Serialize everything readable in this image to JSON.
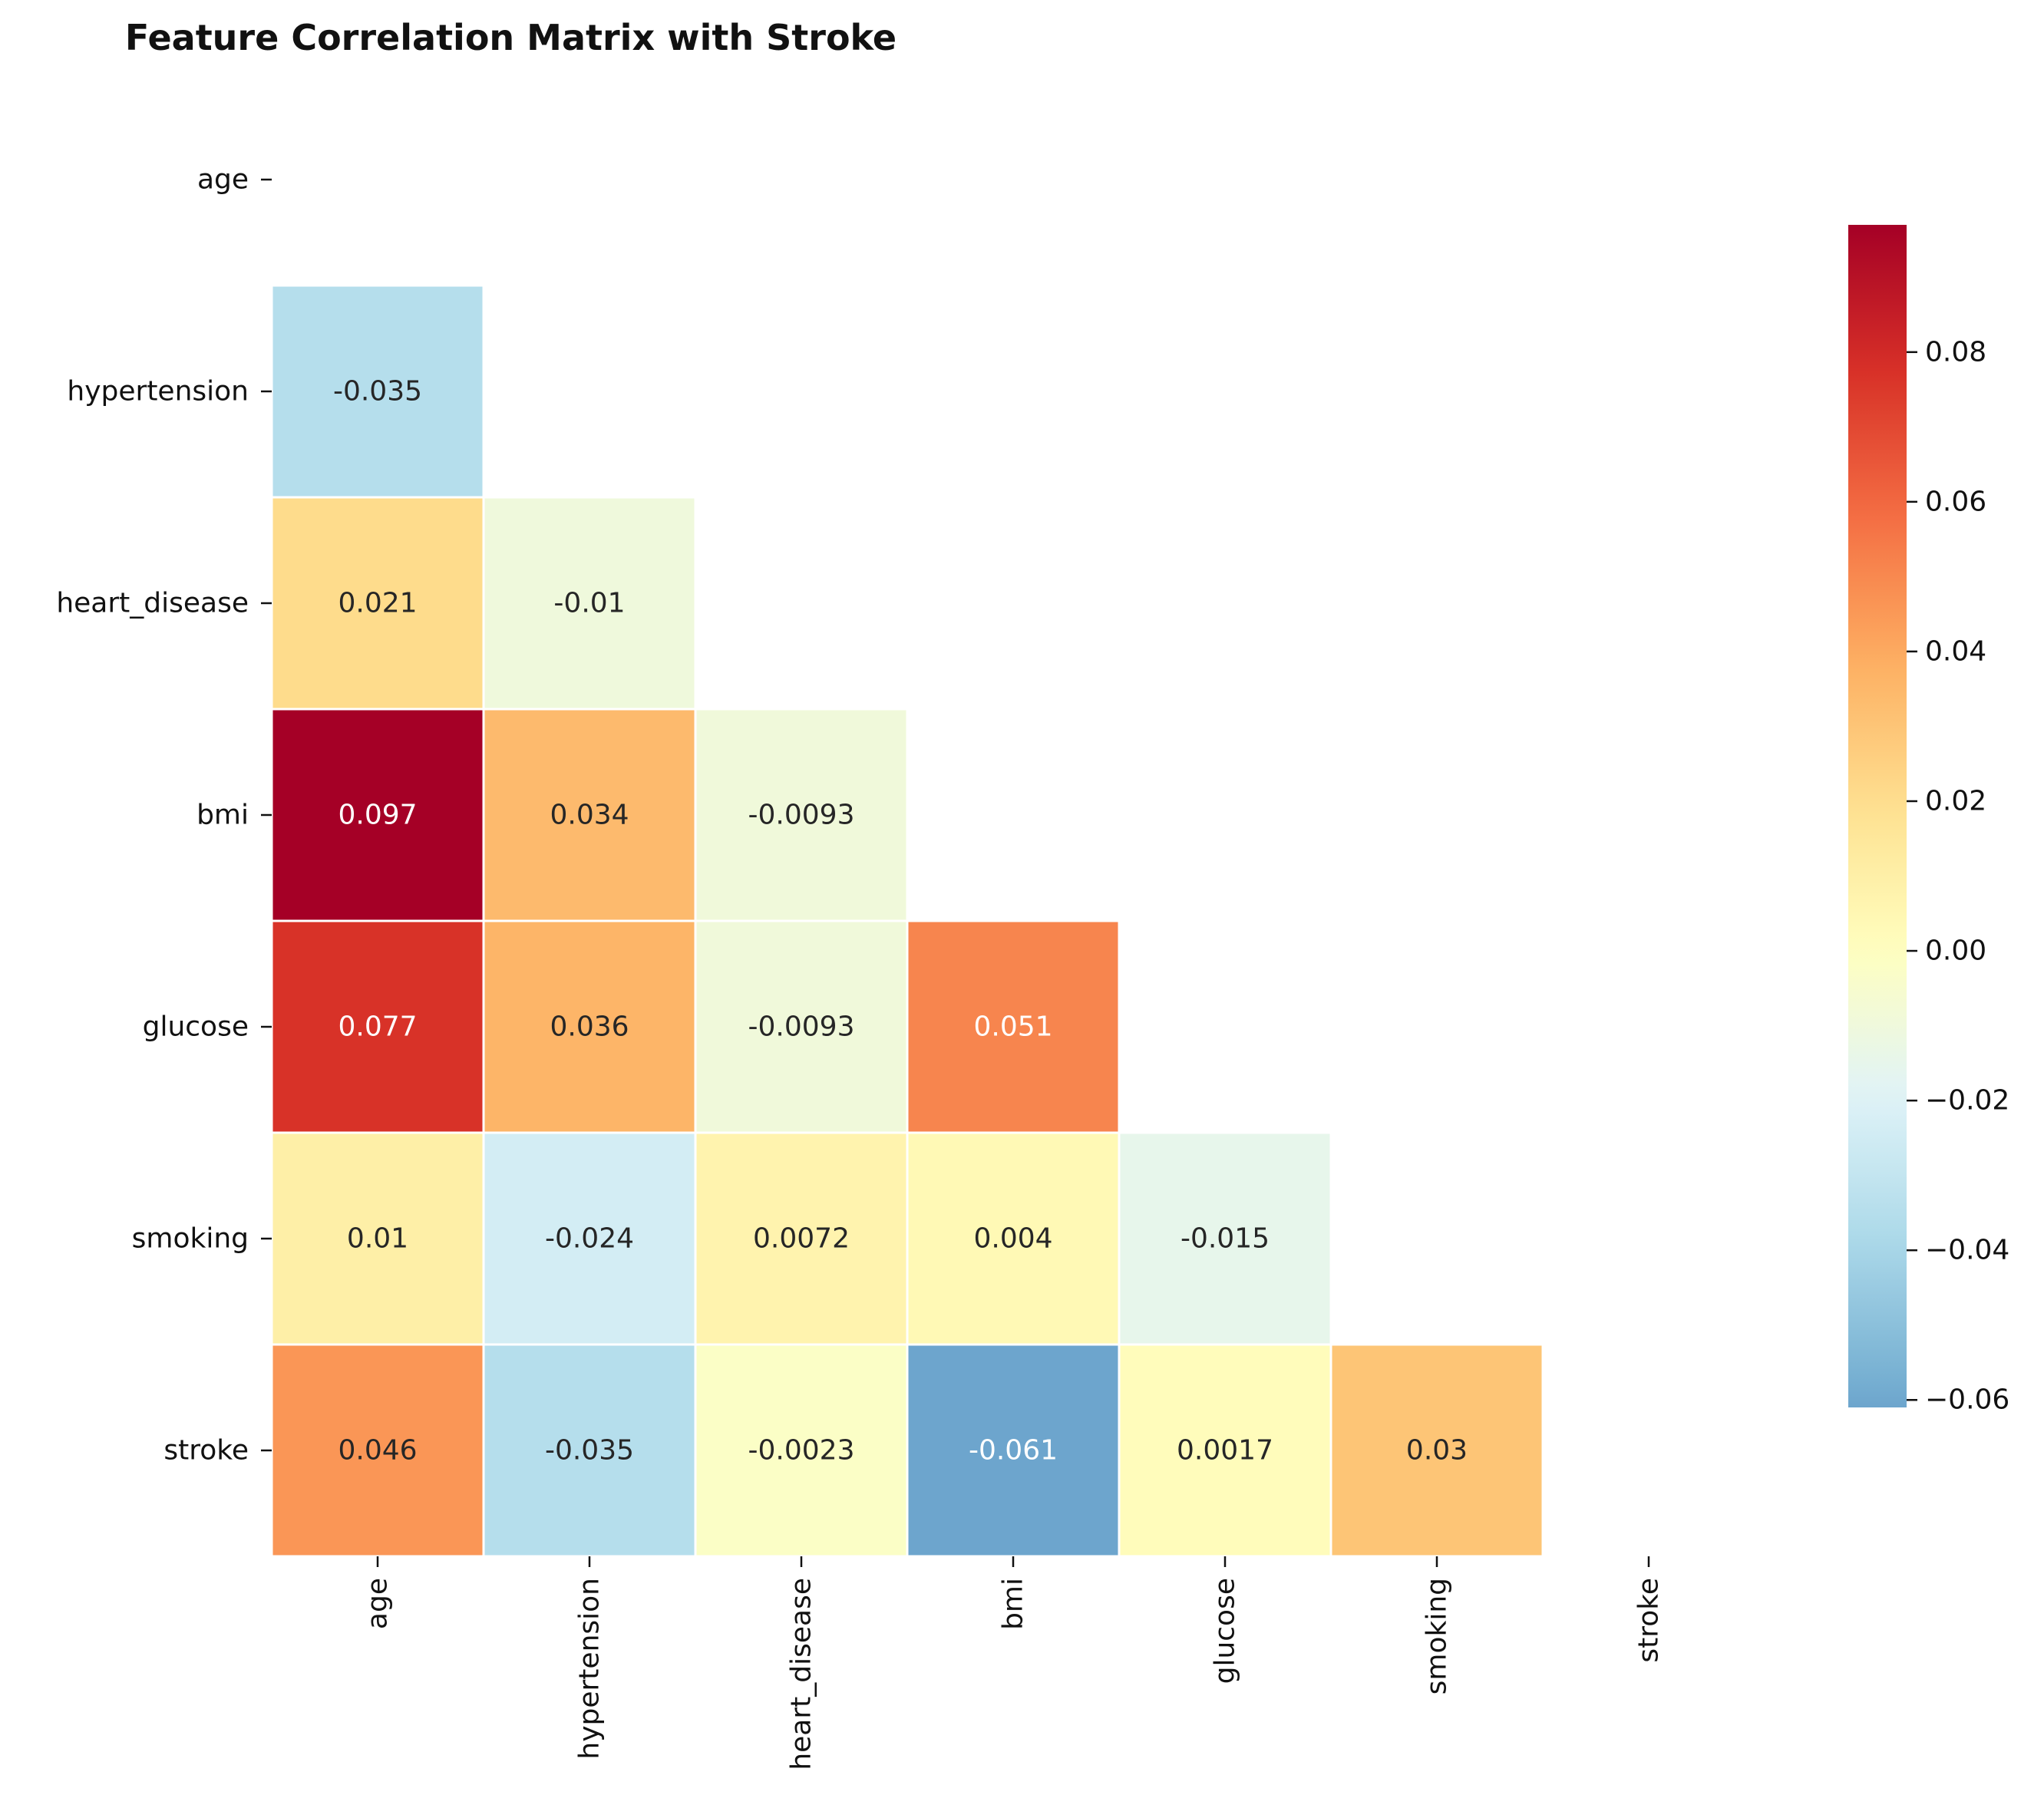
{
  "chart_data": {
    "type": "heatmap",
    "title": "Feature Correlation Matrix with Stroke",
    "xlabel": "",
    "ylabel": "",
    "labels": [
      "age",
      "hypertension",
      "heart_disease",
      "bmi",
      "glucose",
      "smoking",
      "stroke"
    ],
    "mask": "upper-triangle-including-diagonal",
    "cells": [
      {
        "row": "hypertension",
        "col": "age",
        "value": -0.035,
        "label": "-0.035"
      },
      {
        "row": "heart_disease",
        "col": "age",
        "value": 0.021,
        "label": "0.021"
      },
      {
        "row": "heart_disease",
        "col": "hypertension",
        "value": -0.01,
        "label": "-0.01"
      },
      {
        "row": "bmi",
        "col": "age",
        "value": 0.097,
        "label": "0.097"
      },
      {
        "row": "bmi",
        "col": "hypertension",
        "value": 0.034,
        "label": "0.034"
      },
      {
        "row": "bmi",
        "col": "heart_disease",
        "value": -0.0093,
        "label": "-0.0093"
      },
      {
        "row": "glucose",
        "col": "age",
        "value": 0.077,
        "label": "0.077"
      },
      {
        "row": "glucose",
        "col": "hypertension",
        "value": 0.036,
        "label": "0.036"
      },
      {
        "row": "glucose",
        "col": "heart_disease",
        "value": -0.0093,
        "label": "-0.0093"
      },
      {
        "row": "glucose",
        "col": "bmi",
        "value": 0.051,
        "label": "0.051"
      },
      {
        "row": "smoking",
        "col": "age",
        "value": 0.01,
        "label": "0.01"
      },
      {
        "row": "smoking",
        "col": "hypertension",
        "value": -0.024,
        "label": "-0.024"
      },
      {
        "row": "smoking",
        "col": "heart_disease",
        "value": 0.0072,
        "label": "0.0072"
      },
      {
        "row": "smoking",
        "col": "bmi",
        "value": 0.004,
        "label": "0.004"
      },
      {
        "row": "smoking",
        "col": "glucose",
        "value": -0.015,
        "label": "-0.015"
      },
      {
        "row": "stroke",
        "col": "age",
        "value": 0.046,
        "label": "0.046"
      },
      {
        "row": "stroke",
        "col": "hypertension",
        "value": -0.035,
        "label": "-0.035"
      },
      {
        "row": "stroke",
        "col": "heart_disease",
        "value": -0.0023,
        "label": "-0.0023"
      },
      {
        "row": "stroke",
        "col": "bmi",
        "value": -0.061,
        "label": "-0.061"
      },
      {
        "row": "stroke",
        "col": "glucose",
        "value": 0.0017,
        "label": "0.0017"
      },
      {
        "row": "stroke",
        "col": "smoking",
        "value": 0.03,
        "label": "0.03"
      }
    ],
    "colormap": "RdYlBu_r",
    "colormap_center": 0,
    "vmin": -0.061,
    "vmax": 0.097,
    "colorbar_ticks": [
      {
        "value": 0.08,
        "label": "0.08"
      },
      {
        "value": 0.06,
        "label": "0.06"
      },
      {
        "value": 0.04,
        "label": "0.04"
      },
      {
        "value": 0.02,
        "label": "0.02"
      },
      {
        "value": 0.0,
        "label": "0.00"
      },
      {
        "value": -0.02,
        "label": "−0.02"
      },
      {
        "value": -0.04,
        "label": "−0.04"
      },
      {
        "value": -0.06,
        "label": "−0.06"
      }
    ],
    "colorbar_placement": "right",
    "grid": false,
    "cell_border_color": "#ffffff",
    "text_color_dark": "#262626",
    "text_color_light": "#ffffff"
  }
}
